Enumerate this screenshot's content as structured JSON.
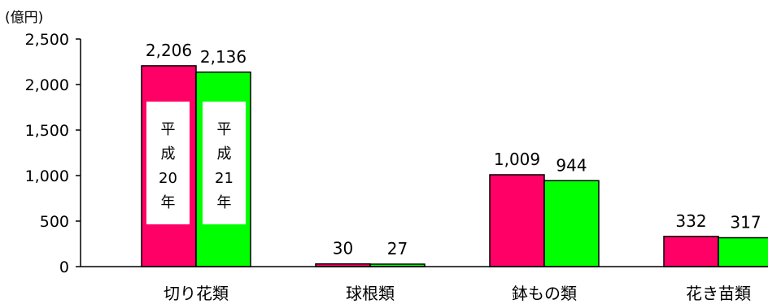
{
  "chart_data": {
    "type": "bar",
    "unit_label": "(億円)",
    "categories": [
      "切り花類",
      "球根類",
      "鉢もの類",
      "花き苗類"
    ],
    "series": [
      {
        "name": "平成20年",
        "legend_chars": [
          "平",
          "成",
          "20",
          "年"
        ],
        "color": "#ff0066",
        "values": [
          2206,
          30,
          1009,
          332
        ],
        "labels": [
          "2,206",
          "30",
          "1,009",
          "332"
        ]
      },
      {
        "name": "平成21年",
        "legend_chars": [
          "平",
          "成",
          "21",
          "年"
        ],
        "color": "#00ff00",
        "values": [
          2136,
          27,
          944,
          317
        ],
        "labels": [
          "2,136",
          "27",
          "944",
          "317"
        ]
      }
    ],
    "ylim": [
      0,
      2500
    ],
    "yticks": [
      0,
      500,
      1000,
      1500,
      2000,
      2500
    ],
    "ytick_labels": [
      "0",
      "500",
      "1,000",
      "1,500",
      "2,000",
      "2,500"
    ],
    "grid": false,
    "legend": "inside-first-group-bars"
  }
}
